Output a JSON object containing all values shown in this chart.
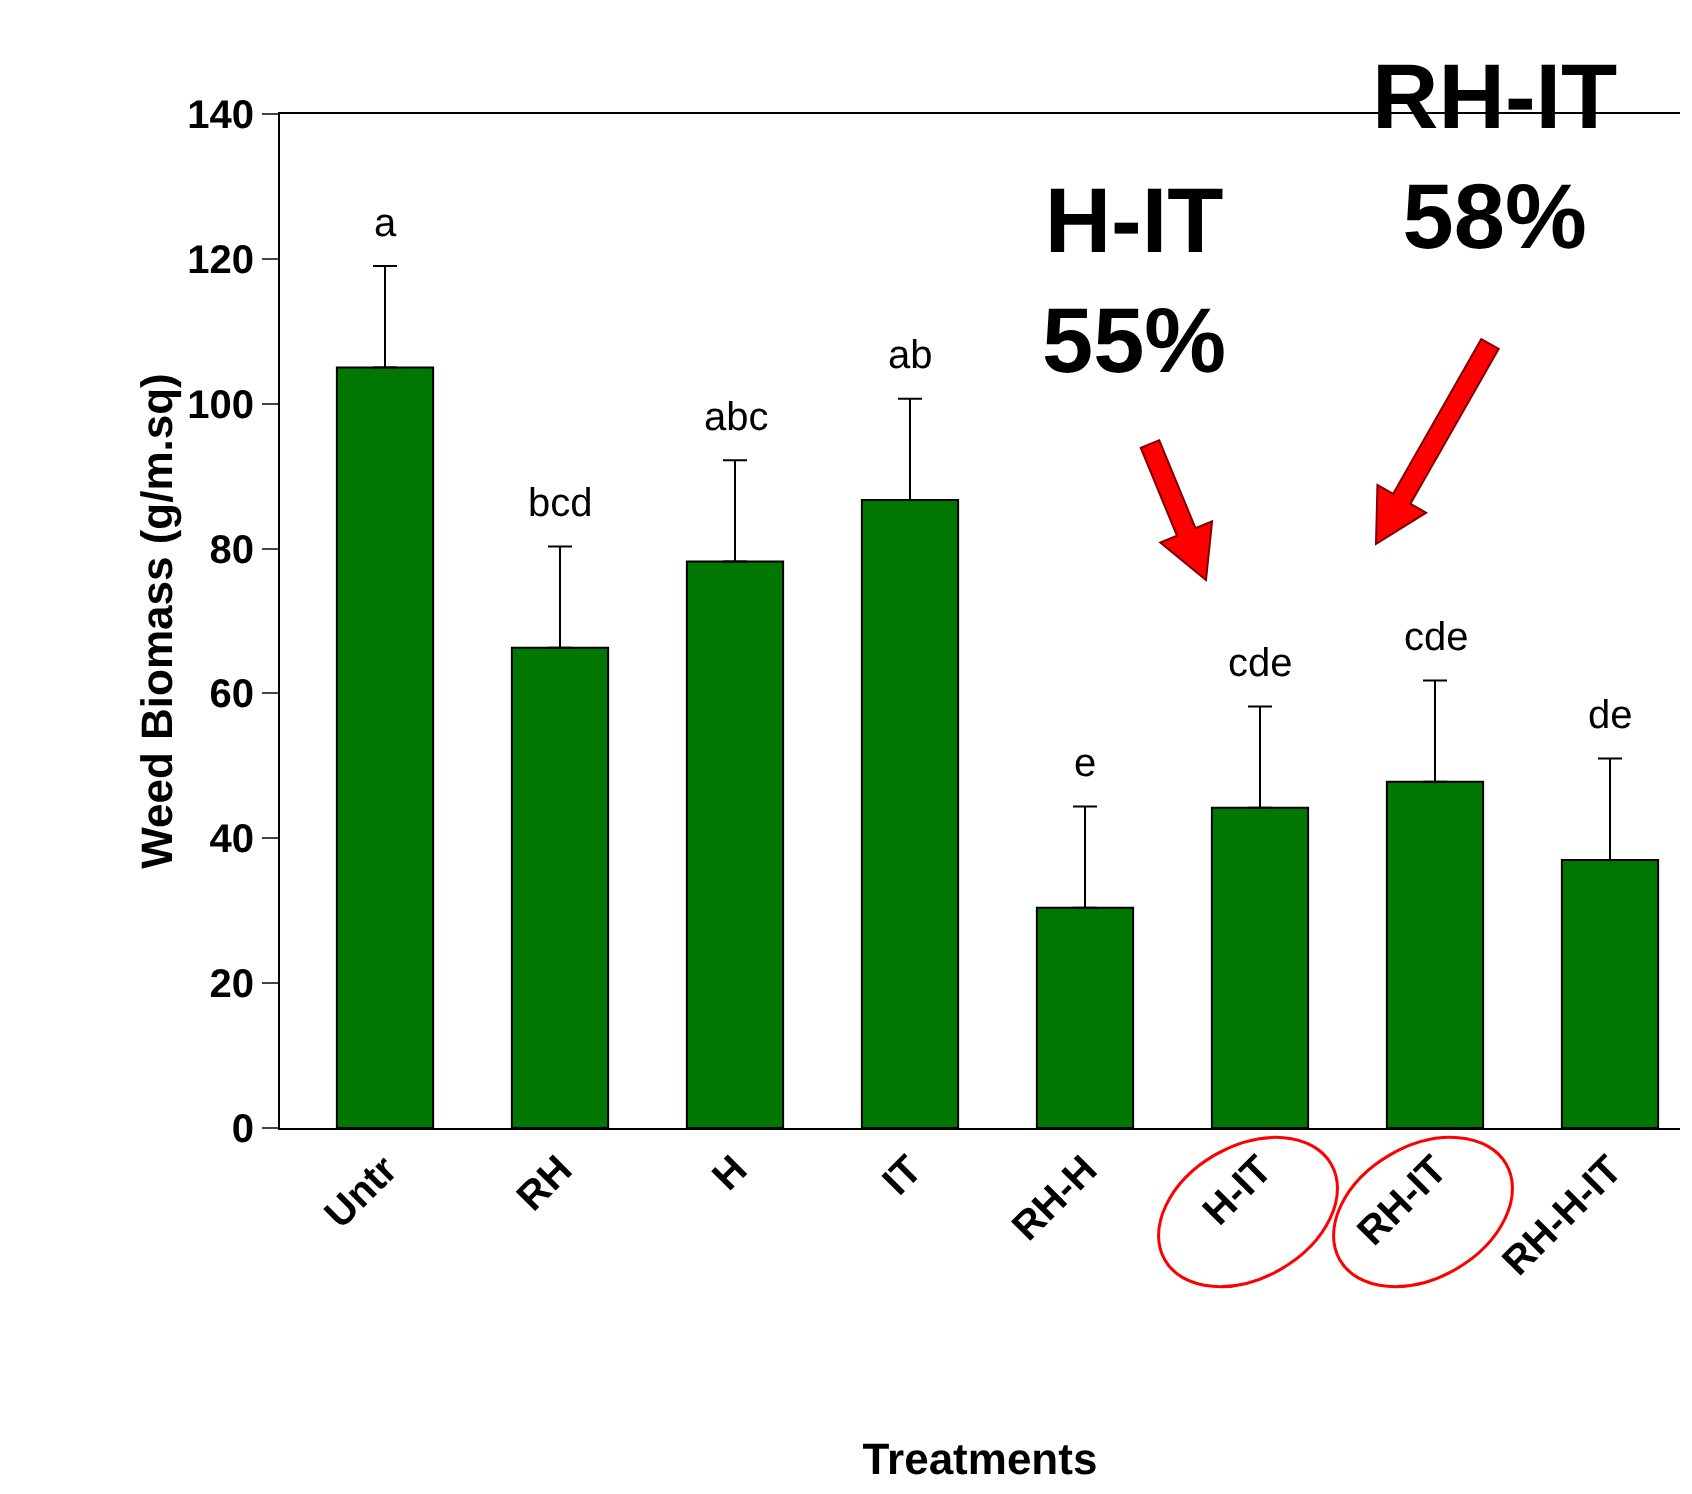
{
  "chart_data": {
    "type": "bar",
    "xlabel": "Treatments",
    "ylabel": "Weed Biomass (g/m.sq)",
    "categories": [
      "Untr",
      "RH",
      "H",
      "IT",
      "RH-H",
      "H-IT",
      "RH-IT",
      "RH-H-IT"
    ],
    "values": [
      105,
      66.3,
      78.2,
      86.7,
      30.4,
      44.2,
      47.8,
      37
    ],
    "errors": [
      [
        105,
        119
      ],
      [
        66.3,
        80.3
      ],
      [
        78.2,
        92.2
      ],
      [
        86.7,
        100.7
      ],
      [
        30.4,
        44.4
      ],
      [
        44.2,
        58.2
      ],
      [
        47.8,
        61.8
      ],
      [
        37,
        51
      ]
    ],
    "color": "#007700",
    "ylim": [
      0,
      140
    ],
    "yticks": [
      0,
      20,
      40,
      60,
      80,
      100,
      120,
      140
    ],
    "annotations": [
      "a",
      "bcd",
      "abc",
      "ab",
      "e",
      "cde",
      "cde",
      "de",
      "H-IT\n55%",
      "RH-IT\n58%"
    ]
  }
}
